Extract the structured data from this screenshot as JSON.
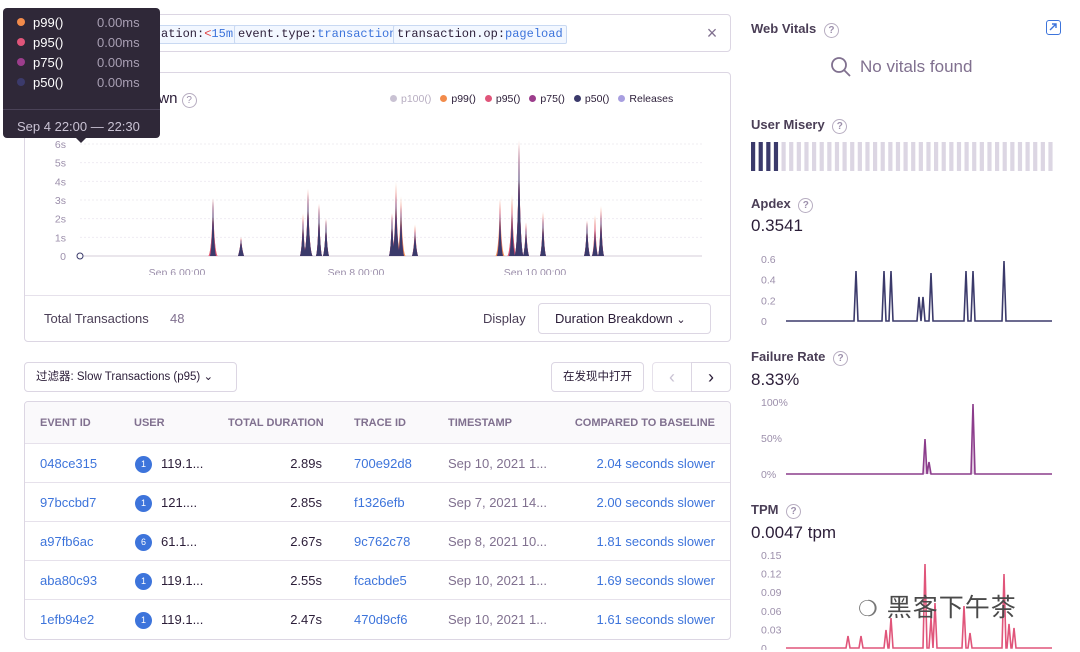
{
  "search": {
    "tokens": [
      {
        "key": "ation:",
        "op": "<",
        "value": "15m"
      },
      {
        "key": "event.type:",
        "op": "",
        "value": "transaction"
      },
      {
        "key": "transaction.op:",
        "op": "",
        "value": "pageload"
      }
    ],
    "clear_icon": "close-icon"
  },
  "chart": {
    "title_fragment": "own",
    "legend": [
      {
        "label": "p100()",
        "color": "#c9c2d3"
      },
      {
        "label": "p99()",
        "color": "#f28b4b"
      },
      {
        "label": "p95()",
        "color": "#e0557a"
      },
      {
        "label": "p75()",
        "color": "#9c3d8c"
      },
      {
        "label": "p50()",
        "color": "#3b3a6b"
      },
      {
        "label": "Releases",
        "color": "#a89fe0"
      }
    ],
    "y_ticks": [
      "6s",
      "5s",
      "4s",
      "3s",
      "2s",
      "1s",
      "0"
    ],
    "x_ticks": [
      "Sep 6 00:00",
      "Sep 8 00:00",
      "Sep 10 00:00"
    ]
  },
  "chart_data": {
    "type": "area",
    "ylabel": "",
    "ylim": [
      0,
      6
    ],
    "x_ticks": [
      "Sep 6 00:00",
      "Sep 8 00:00",
      "Sep 10 00:00"
    ],
    "series": [
      {
        "name": "p99()",
        "spikes": [
          3.1,
          1.0,
          2.3,
          3.6,
          2.8,
          2.0,
          2.3,
          4.0,
          3.2,
          1.7,
          3.1,
          6.2,
          3.3,
          1.8,
          2.4,
          1.9,
          2.2,
          2.7
        ]
      },
      {
        "name": "p95()",
        "spikes": [
          3.1,
          1.0,
          2.2,
          3.6,
          2.8,
          2.0,
          2.3,
          3.8,
          3.0,
          1.6,
          3.0,
          6.2,
          3.1,
          1.8,
          2.3,
          1.9,
          2.1,
          2.6
        ]
      },
      {
        "name": "p75()",
        "spikes": [
          3.0,
          0.9,
          2.0,
          3.4,
          2.7,
          1.9,
          2.2,
          3.4,
          2.7,
          1.4,
          2.6,
          6.0,
          2.5,
          1.6,
          2.1,
          1.8,
          1.5,
          2.4
        ]
      },
      {
        "name": "p50()",
        "spikes": [
          3.0,
          0.9,
          1.9,
          3.3,
          2.6,
          1.9,
          2.1,
          3.2,
          2.6,
          1.3,
          2.3,
          5.9,
          2.3,
          1.5,
          2.0,
          1.8,
          1.3,
          2.2
        ]
      }
    ]
  },
  "tooltip": {
    "rows": [
      {
        "name": "p99()",
        "value": "0.00ms",
        "color": "#f28b4b"
      },
      {
        "name": "p95()",
        "value": "0.00ms",
        "color": "#e0557a"
      },
      {
        "name": "p75()",
        "value": "0.00ms",
        "color": "#9c3d8c"
      },
      {
        "name": "p50()",
        "value": "0.00ms",
        "color": "#3b3a6b"
      }
    ],
    "time_range": "Sep 4 22:00 — 22:30"
  },
  "footer": {
    "total_label": "Total Transactions",
    "total_value": "48",
    "display_label": "Display",
    "display_value": "Duration Breakdown"
  },
  "filter": {
    "label": "过滤器: Slow Transactions (p95)",
    "open_label": "在发现中打开"
  },
  "table": {
    "headers": [
      "EVENT ID",
      "USER",
      "TOTAL DURATION",
      "TRACE ID",
      "TIMESTAMP",
      "COMPARED TO BASELINE"
    ],
    "rows": [
      {
        "event_id": "048ce315",
        "user_badge": "1",
        "user": "119.1...",
        "duration": "2.89s",
        "trace_id": "700e92d8",
        "timestamp": "Sep 10, 2021 1...",
        "baseline": "2.04 seconds slower"
      },
      {
        "event_id": "97bccbd7",
        "user_badge": "1",
        "user": "121....",
        "duration": "2.85s",
        "trace_id": "f1326efb",
        "timestamp": "Sep 7, 2021 14...",
        "baseline": "2.00 seconds slower"
      },
      {
        "event_id": "a97fb6ac",
        "user_badge": "6",
        "user": "61.1...",
        "duration": "2.67s",
        "trace_id": "9c762c78",
        "timestamp": "Sep 8, 2021 10...",
        "baseline": "1.81 seconds slower"
      },
      {
        "event_id": "aba80c93",
        "user_badge": "1",
        "user": "119.1...",
        "duration": "2.55s",
        "trace_id": "fcacbde5",
        "timestamp": "Sep 10, 2021 1...",
        "baseline": "1.69 seconds slower"
      },
      {
        "event_id": "1efb94e2",
        "user_badge": "1",
        "user": "119.1...",
        "duration": "2.47s",
        "trace_id": "470d9cf6",
        "timestamp": "Sep 10, 2021 1...",
        "baseline": "1.61 seconds slower"
      }
    ]
  },
  "sidebar": {
    "web_vitals_title": "Web Vitals",
    "no_vitals": "No vitals found",
    "user_misery_title": "User Misery",
    "user_misery_filled": 4,
    "user_misery_total": 40,
    "apdex_title": "Apdex",
    "apdex_value": "0.3541",
    "apdex_ticks": [
      "0.6",
      "0.4",
      "0.2",
      "0"
    ],
    "failure_title": "Failure Rate",
    "failure_value": "8.33%",
    "failure_ticks": [
      "100%",
      "50%",
      "0%"
    ],
    "tpm_title": "TPM",
    "tpm_value": "0.0047 tpm",
    "tpm_ticks": [
      "0.15",
      "0.12",
      "0.09",
      "0.06",
      "0.03",
      "0"
    ],
    "accent": "#3d74db"
  },
  "watermark": "黑客下午茶"
}
